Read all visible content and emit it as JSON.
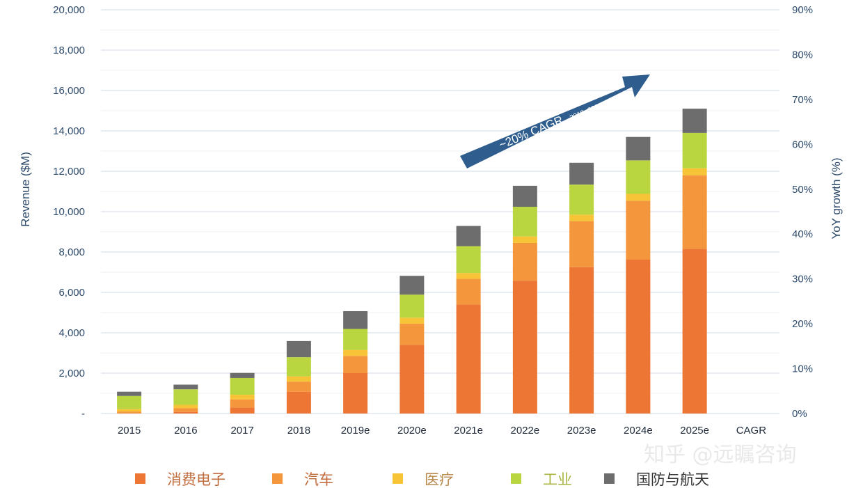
{
  "chart_data": {
    "type": "bar",
    "stacked": true,
    "categories": [
      "2015",
      "2016",
      "2017",
      "2018",
      "2019e",
      "2020e",
      "2021e",
      "2022e",
      "2023e",
      "2024e",
      "2025e",
      "CAGR"
    ],
    "series": [
      {
        "name": "消费电子",
        "color": "#ed7635",
        "values": [
          0,
          80,
          300,
          1080,
          2000,
          3400,
          5400,
          6580,
          7250,
          7620,
          8160,
          null
        ]
      },
      {
        "name": "汽车",
        "color": "#f4963b",
        "values": [
          100,
          180,
          400,
          500,
          850,
          1050,
          1270,
          1870,
          2280,
          2920,
          3640,
          null
        ]
      },
      {
        "name": "医疗",
        "color": "#f7c437",
        "values": [
          120,
          170,
          230,
          260,
          300,
          300,
          290,
          320,
          320,
          340,
          350,
          null
        ]
      },
      {
        "name": "工业",
        "color": "#b9d540",
        "values": [
          650,
          770,
          830,
          950,
          1040,
          1140,
          1330,
          1470,
          1490,
          1660,
          1750,
          null
        ]
      },
      {
        "name": "国防与航天",
        "color": "#6d6d6d",
        "values": [
          210,
          230,
          250,
          800,
          880,
          930,
          1000,
          1040,
          1080,
          1160,
          1200,
          null
        ]
      }
    ],
    "y_left": {
      "label": "Revenue ($M)",
      "min": 0,
      "max": 20000,
      "step": 2000,
      "tick_labels": [
        "-",
        "2,000",
        "4,000",
        "6,000",
        "8,000",
        "10,000",
        "12,000",
        "14,000",
        "16,000",
        "18,000",
        "20,000"
      ]
    },
    "y_right": {
      "label": "YoY growth (%)",
      "min": 0,
      "max": 90,
      "step": 10,
      "tick_labels": [
        "0%",
        "10%",
        "20%",
        "30%",
        "40%",
        "50%",
        "60%",
        "70%",
        "80%",
        "90%"
      ]
    },
    "grid": true,
    "legend_position": "bottom",
    "annotation": {
      "text": "~20% CAGR",
      "subtext": "2019–2025"
    },
    "watermark": "知乎 @远瞩咨询"
  }
}
